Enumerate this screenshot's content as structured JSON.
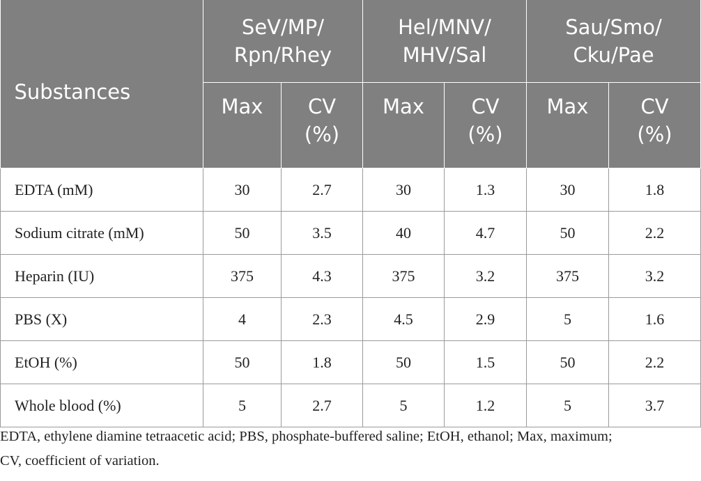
{
  "table": {
    "corner": "Substances",
    "groups": [
      [
        "SeV/MP/",
        "Rpn/Rhey"
      ],
      [
        "Hel/MNV/",
        "MHV/Sal"
      ],
      [
        "Sau/Smo/",
        "Cku/Pae"
      ]
    ],
    "subheaders": [
      "Max",
      "CV (%)",
      "Max",
      "CV (%)",
      "Max",
      "CV (%)"
    ],
    "rows": [
      [
        "EDTA (mM)",
        "30",
        "2.7",
        "30",
        "1.3",
        "30",
        "1.8"
      ],
      [
        "Sodium citrate (mM)",
        "50",
        "3.5",
        "40",
        "4.7",
        "50",
        "2.2"
      ],
      [
        "Heparin (IU)",
        "375",
        "4.3",
        "375",
        "3.2",
        "375",
        "3.2"
      ],
      [
        "PBS (X)",
        "4",
        "2.3",
        "4.5",
        "2.9",
        "5",
        "1.6"
      ],
      [
        "EtOH (%)",
        "50",
        "1.8",
        "50",
        "1.5",
        "50",
        "2.2"
      ],
      [
        "Whole blood (%)",
        "5",
        "2.7",
        "5",
        "1.2",
        "5",
        "3.7"
      ]
    ]
  },
  "footnote": "EDTA, ethylene diamine tetraacetic acid; PBS, phosphate-buffered saline; EtOH, ethanol; Max, maximum; CV, coefficient of variation."
}
